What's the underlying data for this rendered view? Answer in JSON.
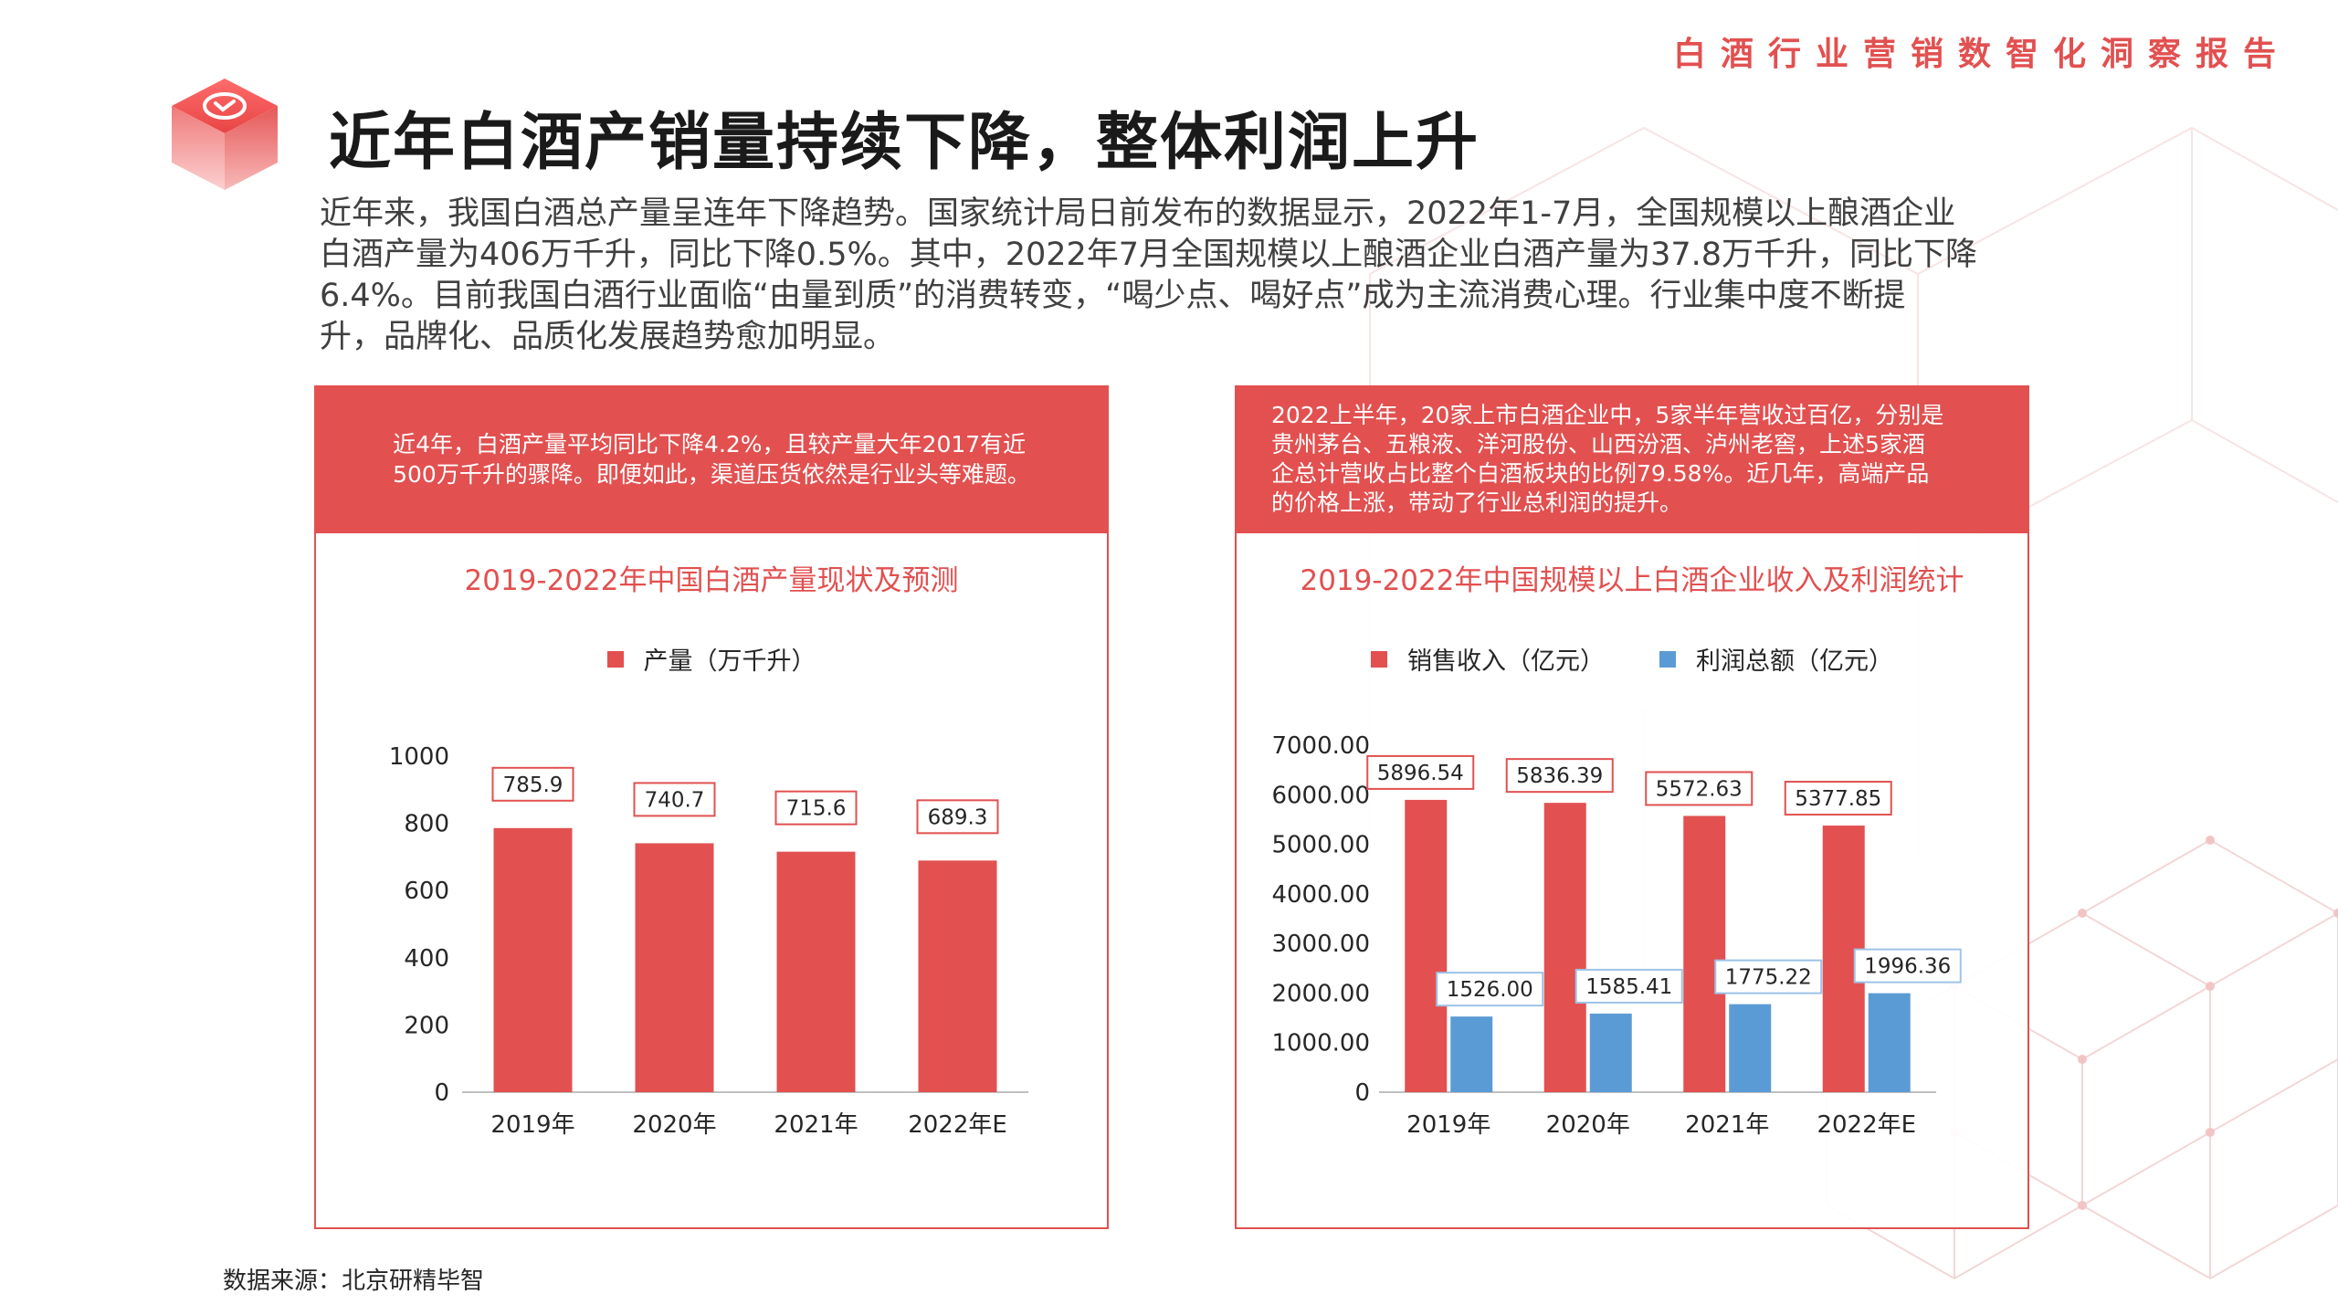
{
  "header": {
    "report_title": "白酒行业营销数智化洞察报告",
    "page_title": "近年白酒产销量持续下降，整体利润上升",
    "logo_icon": "cube-logo-icon"
  },
  "intro": {
    "lines": [
      "近年来，我国白酒总产量呈连年下降趋势。国家统计局日前发布的数据显示，2022年1-7月，全国规模以上酿酒企业",
      "白酒产量为406万千升，同比下降0.5%。其中，2022年7月全国规模以上酿酒企业白酒产量为37.8万千升，同比下降",
      "6.4%。目前我国白酒行业面临“由量到质”的消费转变，“喝少点、喝好点”成为主流消费心理。行业集中度不断提",
      "升，品牌化、品质化发展趋势愈加明显。"
    ]
  },
  "left_panel": {
    "head_lines": [
      "近4年，白酒产量平均同比下降4.2%，且较产量大年2017有近",
      "500万千升的骤降。即便如此，渠道压货依然是行业头等难题。"
    ]
  },
  "right_panel": {
    "head_lines": [
      "2022上半年，20家上市白酒企业中，5家半年营收过百亿，分别是",
      "贵州茅台、五粮液、洋河股份、山西汾酒、泸州老窖，上述5家酒",
      "企总计营收占比整个白酒板块的比例79.58%。近几年，高端产品",
      "的价格上涨，带动了行业总利润的提升。"
    ]
  },
  "colors": {
    "accent": "#e25050",
    "profit_blue": "#5b9bd5",
    "profit_label_border": "#9dc3e6"
  },
  "chart_data": [
    {
      "type": "bar",
      "title": "2019-2022年中国白酒产量现状及预测",
      "categories": [
        "2019年",
        "2020年",
        "2021年",
        "2022年E"
      ],
      "series": [
        {
          "name": "产量（万千升）",
          "values": [
            785.9,
            740.7,
            715.6,
            689.3
          ]
        }
      ],
      "data_labels": [
        "785.9",
        "740.7",
        "715.6",
        "689.3"
      ],
      "ylim": [
        0,
        1000
      ],
      "yticks": [
        "0",
        "200",
        "400",
        "600",
        "800",
        "1000"
      ],
      "legend": "top-center",
      "grid": false
    },
    {
      "type": "bar",
      "title": "2019-2022年中国规模以上白酒企业收入及利润统计",
      "categories": [
        "2019年",
        "2020年",
        "2021年",
        "2022年E"
      ],
      "series": [
        {
          "name": "销售收入（亿元）",
          "values": [
            5896.54,
            5836.39,
            5572.63,
            5377.85
          ],
          "labels": [
            "5896.54",
            "5836.39",
            "5572.63",
            "5377.85"
          ]
        },
        {
          "name": "利润总额（亿元）",
          "values": [
            1526.0,
            1585.41,
            1775.22,
            1996.36
          ],
          "labels": [
            "1526.00",
            "1585.41",
            "1775.22",
            "1996.36"
          ]
        }
      ],
      "ylim": [
        0,
        7000
      ],
      "yticks": [
        "0",
        "1000.00",
        "2000.00",
        "3000.00",
        "4000.00",
        "5000.00",
        "6000.00",
        "7000.00"
      ],
      "legend": "top-center",
      "grid": false
    }
  ],
  "footer": {
    "source": "数据来源：北京研精毕智"
  }
}
